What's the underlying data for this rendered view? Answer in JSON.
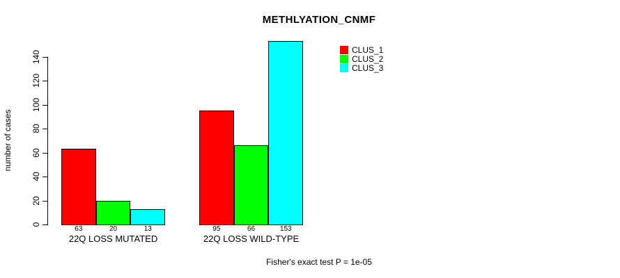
{
  "chart_data": {
    "type": "bar",
    "title": "METHLYATION_CNMF",
    "ylabel": "number of cases",
    "xlabel": "",
    "ylim": [
      0,
      155
    ],
    "yticks": [
      0,
      20,
      40,
      60,
      80,
      100,
      120,
      140
    ],
    "categories": [
      "22Q LOSS MUTATED",
      "22Q LOSS WILD-TYPE"
    ],
    "series": [
      {
        "name": "CLUS_1",
        "color": "#ff0000",
        "values": [
          63,
          95
        ]
      },
      {
        "name": "CLUS_2",
        "color": "#00ff00",
        "values": [
          20,
          66
        ]
      },
      {
        "name": "CLUS_3",
        "color": "#00ffff",
        "values": [
          13,
          153
        ]
      }
    ],
    "bar_value_labels": [
      [
        63,
        20,
        13
      ],
      [
        95,
        66,
        153
      ]
    ],
    "annotation": "Fisher's exact test P = 1e-05",
    "legend_position": "top-right",
    "legend_border": false,
    "grid": false,
    "background": "#ffffff",
    "bar_border_color": "#000000",
    "text_color": "#000000"
  }
}
